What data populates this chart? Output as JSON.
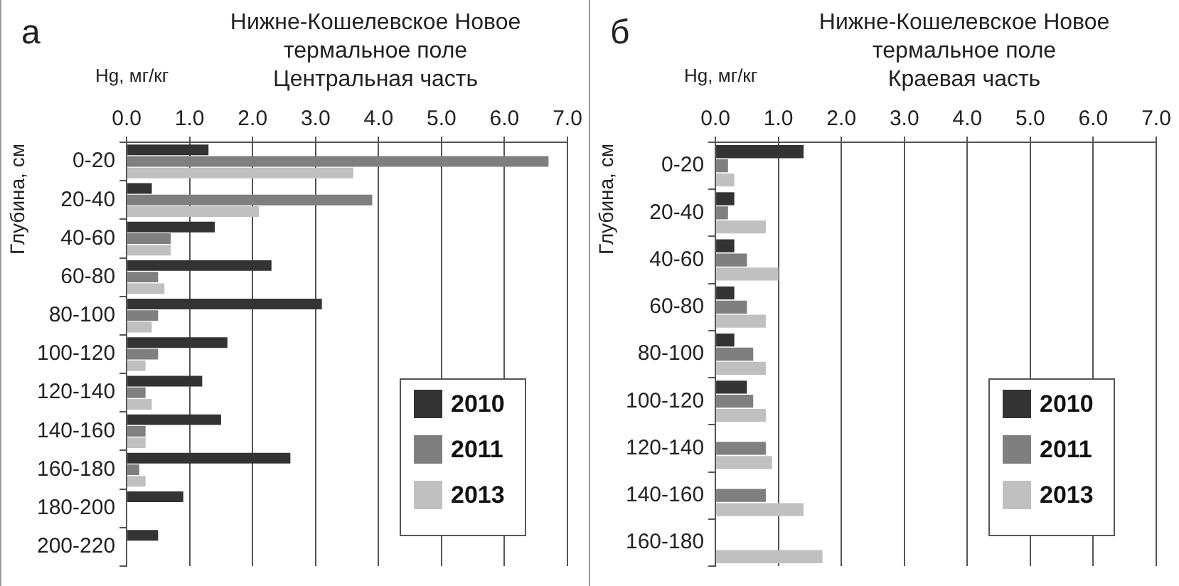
{
  "chart_data": [
    {
      "type": "bar",
      "orientation": "horizontal",
      "title": "Нижне-Кошелевское Новое термальное поле",
      "subtitle": "Центральная часть",
      "xlabel": "Hg, мг/кг",
      "ylabel": "Глубина, см",
      "annotations": [
        "а"
      ],
      "categories": [
        "0-20",
        "20-40",
        "40-60",
        "60-80",
        "80-100",
        "100-120",
        "120-140",
        "140-160",
        "160-180",
        "180-200",
        "200-220"
      ],
      "series": [
        {
          "name": "2010",
          "color": "#333333",
          "values": [
            1.3,
            0.4,
            1.4,
            2.3,
            3.1,
            1.6,
            1.2,
            1.5,
            2.6,
            0.9,
            0.5
          ]
        },
        {
          "name": "2011",
          "color": "#7f7f7f",
          "values": [
            6.7,
            3.9,
            0.7,
            0.5,
            0.5,
            0.5,
            0.3,
            0.3,
            0.2,
            null,
            null
          ]
        },
        {
          "name": "2013",
          "color": "#c0c0c0",
          "values": [
            3.6,
            2.1,
            0.7,
            0.6,
            0.4,
            0.3,
            0.4,
            0.3,
            0.3,
            null,
            null
          ]
        }
      ],
      "xlim": [
        0,
        7
      ],
      "xticks": [
        {
          "value": 0,
          "label": "0.0"
        },
        {
          "value": 1,
          "label": "1.0"
        },
        {
          "value": 2,
          "label": "2.0"
        },
        {
          "value": 3,
          "label": "3.0"
        },
        {
          "value": 4,
          "label": "4.0"
        },
        {
          "value": 5,
          "label": "5.0"
        },
        {
          "value": 6,
          "label": "6.0"
        },
        {
          "value": 7,
          "label": "7.0"
        }
      ],
      "grid": "x",
      "legend": "bottom right"
    },
    {
      "type": "bar",
      "orientation": "horizontal",
      "title": "Нижне-Кошелевское Новое термальное поле",
      "subtitle": "Краевая часть",
      "xlabel": "Hg, мг/кг",
      "ylabel": "Глубина, см",
      "annotations": [
        "б"
      ],
      "categories": [
        "0-20",
        "20-40",
        "40-60",
        "60-80",
        "80-100",
        "100-120",
        "120-140",
        "140-160",
        "160-180"
      ],
      "series": [
        {
          "name": "2010",
          "color": "#333333",
          "values": [
            1.4,
            0.3,
            0.3,
            0.3,
            0.3,
            0.5,
            null,
            null,
            null
          ]
        },
        {
          "name": "2011",
          "color": "#7f7f7f",
          "values": [
            0.2,
            0.2,
            0.5,
            0.5,
            0.6,
            0.6,
            0.8,
            0.8,
            null
          ]
        },
        {
          "name": "2013",
          "color": "#c0c0c0",
          "values": [
            0.3,
            0.8,
            1.0,
            0.8,
            0.8,
            0.8,
            0.9,
            1.4,
            1.7
          ]
        }
      ],
      "xlim": [
        0,
        7
      ],
      "xticks": [
        {
          "value": 0,
          "label": "0.0"
        },
        {
          "value": 1,
          "label": "1.0"
        },
        {
          "value": 2,
          "label": "2.0"
        },
        {
          "value": 3,
          "label": "3.0"
        },
        {
          "value": 4,
          "label": "4.0"
        },
        {
          "value": 5,
          "label": "5.0"
        },
        {
          "value": 6,
          "label": "6.0"
        },
        {
          "value": 7,
          "label": "7.0"
        }
      ],
      "grid": "x",
      "legend": "bottom right"
    }
  ]
}
